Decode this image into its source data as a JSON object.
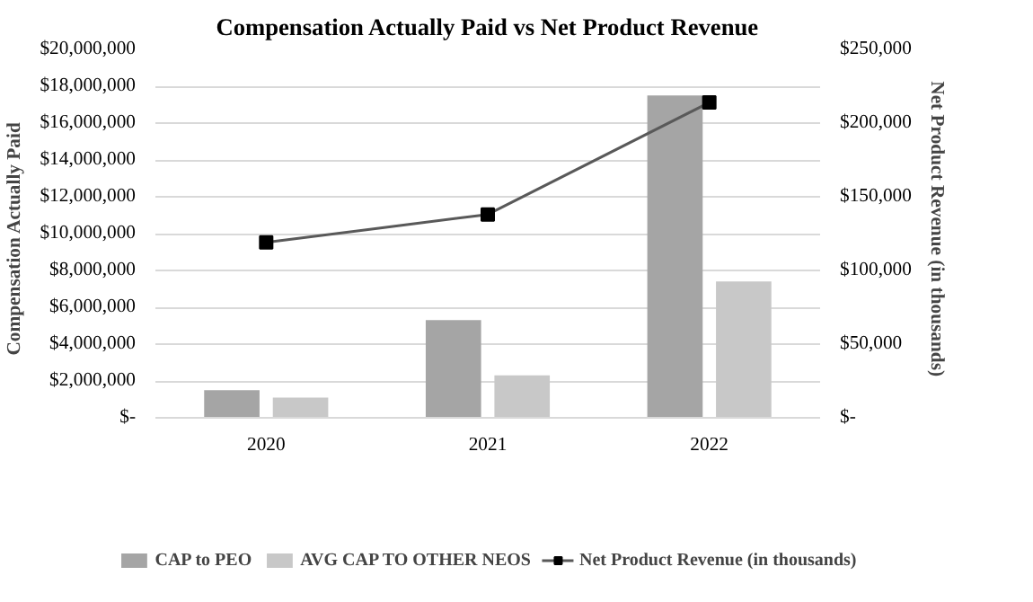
{
  "chart_data": {
    "type": "bar",
    "title": "Compensation Actually Paid vs Net Product Revenue",
    "ylabel": "Compensation  Actually  Paid",
    "y2label": "Net Product  Revenue  (in thousands)",
    "categories": [
      "2020",
      "2021",
      "2022"
    ],
    "series": [
      {
        "name": "CAP to PEO",
        "color": "#a5a5a5",
        "values": [
          1500000,
          5300000,
          17500000
        ]
      },
      {
        "name": "AVG CAP TO OTHER NEOS",
        "color": "#c8c8c8",
        "values": [
          1100000,
          2300000,
          7400000
        ]
      },
      {
        "name": "Net Product Revenue (in thousands)",
        "type": "line",
        "axis": "y2",
        "color": "#595959",
        "marker": "square",
        "values": [
          119000,
          138000,
          214000
        ]
      }
    ],
    "ylim": [
      0,
      20000000
    ],
    "yticks": [
      {
        "value": 0,
        "label": "$-"
      },
      {
        "value": 2000000,
        "label": "$2,000,000"
      },
      {
        "value": 4000000,
        "label": "$4,000,000"
      },
      {
        "value": 6000000,
        "label": "$6,000,000"
      },
      {
        "value": 8000000,
        "label": "$8,000,000"
      },
      {
        "value": 10000000,
        "label": "$10,000,000"
      },
      {
        "value": 12000000,
        "label": "$12,000,000"
      },
      {
        "value": 14000000,
        "label": "$14,000,000"
      },
      {
        "value": 16000000,
        "label": "$16,000,000"
      },
      {
        "value": 18000000,
        "label": "$18,000,000"
      },
      {
        "value": 20000000,
        "label": "$20,000,000"
      }
    ],
    "y2lim": [
      0,
      250000
    ],
    "y2ticks": [
      {
        "value": 0,
        "label": "$-"
      },
      {
        "value": 50000,
        "label": "$50,000"
      },
      {
        "value": 100000,
        "label": "$100,000"
      },
      {
        "value": 150000,
        "label": "$150,000"
      },
      {
        "value": 200000,
        "label": "$200,000"
      },
      {
        "value": 250000,
        "label": "$250,000"
      }
    ],
    "grid": "y",
    "legend": "bottom"
  }
}
